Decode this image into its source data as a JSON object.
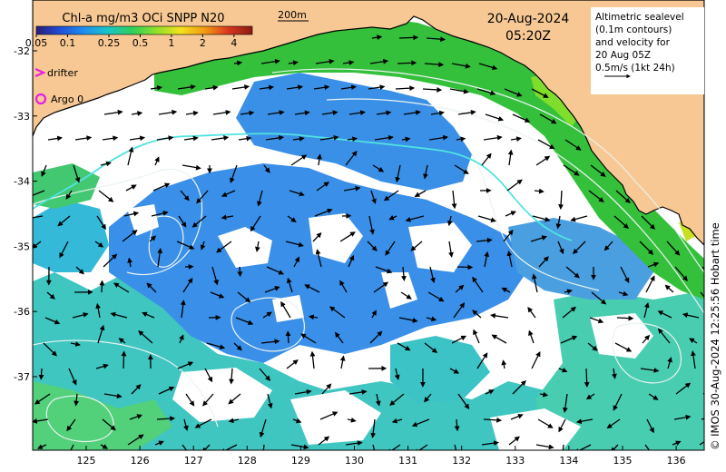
{
  "colorbar": {
    "title": "Chl-a mg/m3 OCi SNPP N20",
    "labels": [
      "0.05",
      "0.1",
      "0.25",
      "0.5",
      "1",
      "2",
      "4"
    ],
    "stops": [
      "#2c1a7c",
      "#1f4fd6",
      "#1e8ff0",
      "#19c6c8",
      "#2fcf5a",
      "#8fe02a",
      "#f3e21b",
      "#f39c12",
      "#d9361f",
      "#8b1a12"
    ]
  },
  "depth_contour_label": "200m",
  "date": "20-Aug-2024",
  "time": "05:20Z",
  "legend": {
    "drifter": "drifter",
    "argo": "Argo 0",
    "drifter_color": "#e61ee6",
    "argo_color": "#e61ee6"
  },
  "info_box": {
    "lines": [
      "Altimetric sealevel",
      "(0.1m contours)",
      "and velocity for",
      "20 Aug 05Z",
      "0.5m/s (1kt 24h)"
    ]
  },
  "credit": "© IMOS 30-Aug-2024 12:25:56 Hobart time",
  "axes": {
    "x_ticks": [
      "125",
      "126",
      "127",
      "128",
      "129",
      "130",
      "131",
      "132",
      "133",
      "134",
      "135",
      "136"
    ],
    "y_ticks": [
      "-32",
      "-33",
      "-34",
      "-35",
      "-36",
      "-37"
    ]
  },
  "colors": {
    "land": "#f7c893",
    "ocean_blue": "#3a8fe8",
    "ocean_cyan": "#3fc6c0",
    "ocean_green": "#37c24a",
    "contour": "#e9f3f0",
    "current_line": "#50e3e0"
  }
}
